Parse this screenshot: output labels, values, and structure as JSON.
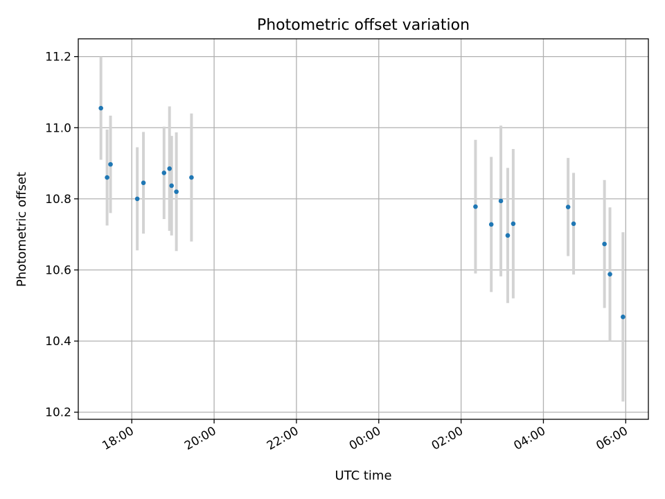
{
  "chart_data": {
    "type": "scatter",
    "title": "Photometric offset variation",
    "xlabel": "UTC time",
    "ylabel": "Photometric offset",
    "x_axis": "time",
    "x_start_label": "17:00",
    "xlim_hours": [
      16.7,
      30.55
    ],
    "ylim": [
      10.18,
      11.25
    ],
    "y_ticks": [
      10.2,
      10.4,
      10.6,
      10.8,
      11.0,
      11.2
    ],
    "y_tick_labels": [
      "10.2",
      "10.4",
      "10.6",
      "10.8",
      "11.0",
      "11.2"
    ],
    "x_tick_labels": [
      "18:00",
      "20:00",
      "22:00",
      "00:00",
      "02:00",
      "04:00",
      "06:00"
    ],
    "grid": true,
    "colors": {
      "point": "#1f77b4",
      "errorbar": "#d3d3d3"
    },
    "points": [
      {
        "time": "17:15",
        "y": 11.055,
        "err": 0.145
      },
      {
        "time": "17:24",
        "y": 10.86,
        "err": 0.135
      },
      {
        "time": "17:29",
        "y": 10.897,
        "err": 0.137
      },
      {
        "time": "18:08",
        "y": 10.8,
        "err": 0.145
      },
      {
        "time": "18:17",
        "y": 10.845,
        "err": 0.143
      },
      {
        "time": "18:47",
        "y": 10.873,
        "err": 0.13
      },
      {
        "time": "18:55",
        "y": 10.885,
        "err": 0.175
      },
      {
        "time": "18:58",
        "y": 10.837,
        "err": 0.14
      },
      {
        "time": "19:05",
        "y": 10.82,
        "err": 0.167
      },
      {
        "time": "19:27",
        "y": 10.86,
        "err": 0.18
      },
      {
        "time": "02:21",
        "y": 10.778,
        "err": 0.188
      },
      {
        "time": "02:44",
        "y": 10.728,
        "err": 0.19
      },
      {
        "time": "02:58",
        "y": 10.794,
        "err": 0.212
      },
      {
        "time": "03:08",
        "y": 10.697,
        "err": 0.19
      },
      {
        "time": "03:16",
        "y": 10.73,
        "err": 0.21
      },
      {
        "time": "04:36",
        "y": 10.777,
        "err": 0.138
      },
      {
        "time": "04:44",
        "y": 10.73,
        "err": 0.143
      },
      {
        "time": "05:29",
        "y": 10.673,
        "err": 0.18
      },
      {
        "time": "05:37",
        "y": 10.588,
        "err": 0.188
      },
      {
        "time": "05:56",
        "y": 10.468,
        "err": 0.238
      }
    ]
  }
}
